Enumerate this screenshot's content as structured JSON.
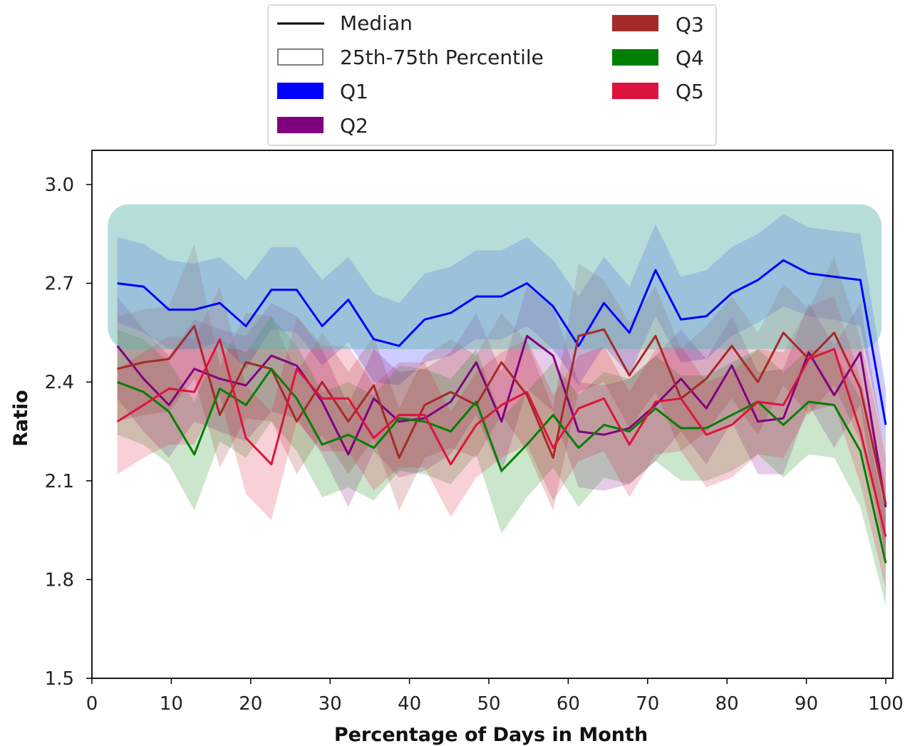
{
  "chart_data": {
    "type": "line",
    "xlabel": "Percentage of Days in Month",
    "ylabel": "Ratio",
    "xlim": [
      0,
      100
    ],
    "ylim": [
      1.5,
      3.1
    ],
    "xticks": [
      0,
      10,
      20,
      30,
      40,
      50,
      60,
      70,
      80,
      90,
      100
    ],
    "yticks": [
      1.5,
      1.8,
      2.1,
      2.4,
      2.7,
      3.0
    ],
    "x": [
      3.2,
      6.5,
      9.7,
      12.9,
      16.1,
      19.4,
      22.6,
      25.8,
      29.0,
      32.3,
      35.5,
      38.7,
      41.9,
      45.2,
      48.4,
      51.6,
      54.8,
      58.1,
      61.3,
      64.5,
      67.7,
      71.0,
      74.2,
      77.4,
      80.6,
      83.9,
      87.1,
      90.3,
      93.5,
      96.8,
      100.0
    ],
    "legend": {
      "position": "upper center, above plot",
      "entries": [
        {
          "label": "Median",
          "kind": "line",
          "color": "#000000"
        },
        {
          "label": "25th-75th Percentile",
          "kind": "band",
          "color": "#ffffff"
        },
        {
          "label": "Q1",
          "kind": "patch",
          "color": "#0000ff"
        },
        {
          "label": "Q2",
          "kind": "patch",
          "color": "#800080"
        },
        {
          "label": "Q3",
          "kind": "patch",
          "color": "#a52a2a"
        },
        {
          "label": "Q4",
          "kind": "patch",
          "color": "#008000"
        },
        {
          "label": "Q5",
          "kind": "patch",
          "color": "#dc143c"
        }
      ]
    },
    "series": [
      {
        "name": "Q1",
        "color": "#0000ff",
        "median": [
          2.7,
          2.69,
          2.62,
          2.62,
          2.64,
          2.57,
          2.68,
          2.68,
          2.57,
          2.65,
          2.53,
          2.51,
          2.59,
          2.61,
          2.66,
          2.66,
          2.7,
          2.63,
          2.51,
          2.64,
          2.55,
          2.74,
          2.59,
          2.6,
          2.67,
          2.71,
          2.77,
          2.73,
          2.72,
          2.71,
          2.27
        ],
        "p25": [
          2.58,
          2.55,
          2.5,
          2.5,
          2.52,
          2.44,
          2.56,
          2.55,
          2.45,
          2.52,
          2.4,
          2.39,
          2.46,
          2.48,
          2.53,
          2.53,
          2.57,
          2.5,
          2.39,
          2.51,
          2.42,
          2.6,
          2.46,
          2.47,
          2.54,
          2.58,
          2.63,
          2.6,
          2.59,
          2.57,
          2.18
        ],
        "p75": [
          2.84,
          2.82,
          2.77,
          2.76,
          2.78,
          2.71,
          2.81,
          2.81,
          2.71,
          2.78,
          2.67,
          2.64,
          2.73,
          2.75,
          2.8,
          2.8,
          2.84,
          2.77,
          2.66,
          2.78,
          2.69,
          2.88,
          2.72,
          2.74,
          2.81,
          2.85,
          2.91,
          2.87,
          2.86,
          2.85,
          2.38
        ]
      },
      {
        "name": "Q2",
        "color": "#800080",
        "median": [
          2.51,
          2.41,
          2.33,
          2.44,
          2.41,
          2.39,
          2.48,
          2.45,
          2.34,
          2.18,
          2.35,
          2.28,
          2.29,
          2.34,
          2.46,
          2.28,
          2.54,
          2.48,
          2.25,
          2.24,
          2.26,
          2.33,
          2.41,
          2.32,
          2.45,
          2.28,
          2.29,
          2.49,
          2.36,
          2.49,
          2.02
        ],
        "p25": [
          2.35,
          2.25,
          2.17,
          2.28,
          2.25,
          2.22,
          2.31,
          2.29,
          2.18,
          2.02,
          2.19,
          2.11,
          2.13,
          2.18,
          2.3,
          2.12,
          2.38,
          2.31,
          2.08,
          2.07,
          2.09,
          2.16,
          2.25,
          2.15,
          2.28,
          2.12,
          2.12,
          2.33,
          2.2,
          2.33,
          1.86
        ],
        "p75": [
          2.66,
          2.56,
          2.48,
          2.59,
          2.56,
          2.54,
          2.64,
          2.6,
          2.5,
          2.33,
          2.5,
          2.43,
          2.44,
          2.49,
          2.61,
          2.43,
          2.69,
          2.63,
          2.4,
          2.39,
          2.41,
          2.48,
          2.56,
          2.47,
          2.6,
          2.43,
          2.44,
          2.64,
          2.51,
          2.64,
          2.17
        ]
      },
      {
        "name": "Q3",
        "color": "#a52a2a",
        "median": [
          2.44,
          2.46,
          2.47,
          2.57,
          2.3,
          2.46,
          2.44,
          2.28,
          2.4,
          2.28,
          2.39,
          2.17,
          2.33,
          2.37,
          2.33,
          2.46,
          2.36,
          2.17,
          2.54,
          2.56,
          2.42,
          2.54,
          2.35,
          2.41,
          2.51,
          2.4,
          2.55,
          2.47,
          2.55,
          2.38,
          2.03
        ],
        "p25": [
          2.28,
          2.3,
          2.31,
          2.41,
          2.14,
          2.29,
          2.28,
          2.12,
          2.24,
          2.12,
          2.23,
          2.01,
          2.17,
          2.2,
          2.17,
          2.3,
          2.19,
          2.01,
          2.37,
          2.4,
          2.26,
          2.37,
          2.19,
          2.25,
          2.35,
          2.24,
          2.39,
          2.3,
          2.39,
          2.22,
          1.87
        ],
        "p75": [
          2.6,
          2.62,
          2.63,
          2.82,
          2.45,
          2.61,
          2.6,
          2.43,
          2.55,
          2.43,
          2.54,
          2.32,
          2.48,
          2.53,
          2.48,
          2.61,
          2.52,
          2.32,
          2.76,
          2.71,
          2.58,
          2.69,
          2.5,
          2.57,
          2.66,
          2.55,
          2.7,
          2.62,
          2.78,
          2.53,
          2.18
        ]
      },
      {
        "name": "Q4",
        "color": "#008000",
        "median": [
          2.4,
          2.37,
          2.31,
          2.18,
          2.38,
          2.33,
          2.44,
          2.35,
          2.21,
          2.24,
          2.2,
          2.29,
          2.28,
          2.25,
          2.34,
          2.13,
          2.21,
          2.3,
          2.2,
          2.27,
          2.25,
          2.32,
          2.26,
          2.26,
          2.3,
          2.34,
          2.27,
          2.34,
          2.33,
          2.19,
          1.85
        ],
        "p25": [
          2.24,
          2.21,
          2.15,
          2.01,
          2.22,
          2.17,
          2.28,
          2.19,
          2.05,
          2.08,
          2.04,
          2.13,
          2.12,
          2.09,
          2.18,
          1.94,
          2.05,
          2.14,
          2.02,
          2.11,
          2.09,
          2.16,
          2.1,
          2.1,
          2.13,
          2.18,
          2.11,
          2.18,
          2.17,
          2.02,
          1.72
        ],
        "p75": [
          2.56,
          2.53,
          2.46,
          2.34,
          2.53,
          2.49,
          2.6,
          2.51,
          2.37,
          2.4,
          2.36,
          2.45,
          2.44,
          2.41,
          2.5,
          2.29,
          2.37,
          2.46,
          2.36,
          2.43,
          2.41,
          2.48,
          2.42,
          2.42,
          2.46,
          2.5,
          2.43,
          2.5,
          2.49,
          2.35,
          2.0
        ]
      },
      {
        "name": "Q5",
        "color": "#dc143c",
        "median": [
          2.28,
          2.33,
          2.38,
          2.37,
          2.53,
          2.23,
          2.15,
          2.44,
          2.35,
          2.35,
          2.23,
          2.3,
          2.3,
          2.15,
          2.27,
          2.33,
          2.37,
          2.2,
          2.32,
          2.35,
          2.21,
          2.34,
          2.35,
          2.24,
          2.27,
          2.34,
          2.33,
          2.47,
          2.5,
          2.25,
          1.93
        ],
        "p25": [
          2.12,
          2.17,
          2.21,
          2.21,
          2.36,
          2.06,
          1.98,
          2.28,
          2.19,
          2.19,
          2.07,
          2.14,
          2.14,
          1.99,
          2.11,
          2.17,
          2.21,
          2.04,
          2.16,
          2.19,
          2.05,
          2.18,
          2.19,
          2.08,
          2.11,
          2.18,
          2.17,
          2.31,
          2.33,
          2.09,
          1.77
        ],
        "p75": [
          2.44,
          2.49,
          2.54,
          2.53,
          2.69,
          2.39,
          2.31,
          2.6,
          2.51,
          2.51,
          2.39,
          2.46,
          2.46,
          2.31,
          2.43,
          2.49,
          2.53,
          2.36,
          2.48,
          2.51,
          2.37,
          2.5,
          2.51,
          2.4,
          2.43,
          2.5,
          2.49,
          2.63,
          2.66,
          2.41,
          2.09
        ]
      }
    ],
    "highlight_region": {
      "x": [
        2.0,
        100.0
      ],
      "y": [
        2.5,
        2.94
      ],
      "color": "#5fb3b0"
    }
  }
}
